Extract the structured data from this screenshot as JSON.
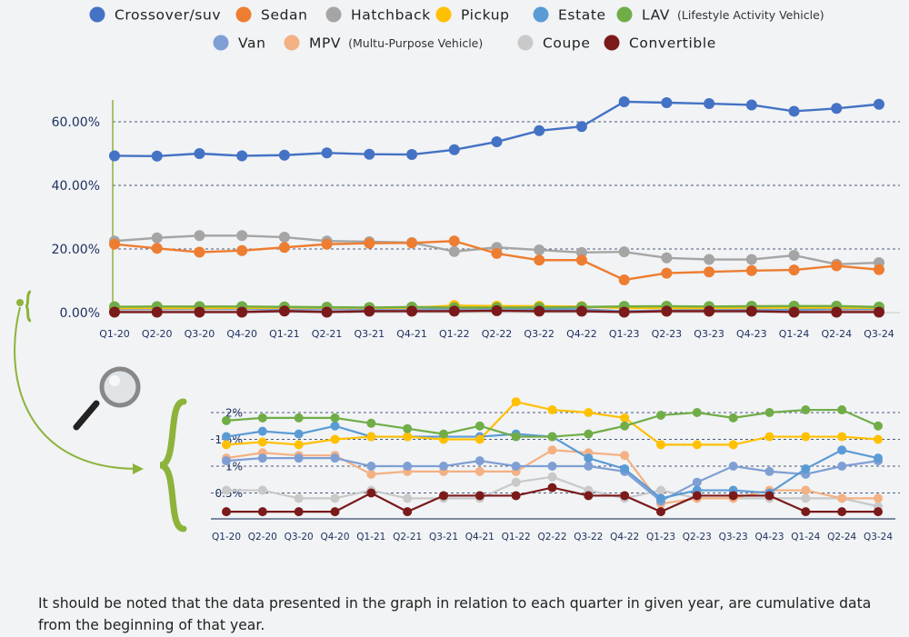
{
  "chart_data": [
    {
      "type": "line",
      "categories": [
        "Q1-20",
        "Q2-20",
        "Q3-20",
        "Q4-20",
        "Q1-21",
        "Q2-21",
        "Q3-21",
        "Q4-21",
        "Q1-22",
        "Q2-22",
        "Q3-22",
        "Q4-22",
        "Q1-23",
        "Q2-23",
        "Q3-23",
        "Q4-23",
        "Q1-24",
        "Q2-24",
        "Q3-24"
      ],
      "y_ticks": [
        "0.00%",
        "20.00%",
        "40.00%",
        "60.00%"
      ],
      "ylim": [
        0,
        70
      ],
      "legend_position": "top",
      "series": [
        {
          "name": "Crossover/suv",
          "color": "#4472c4",
          "values": [
            49.3,
            49.2,
            50.0,
            49.3,
            49.5,
            50.2,
            49.8,
            49.7,
            51.2,
            53.7,
            57.2,
            58.5,
            66.3,
            66.0,
            65.7,
            65.3,
            63.3,
            64.2,
            65.5
          ]
        },
        {
          "name": "Sedan",
          "color": "#ed7d31",
          "values": [
            21.5,
            20.2,
            19.0,
            19.5,
            20.5,
            21.5,
            21.8,
            21.9,
            22.5,
            18.6,
            16.5,
            16.5,
            10.3,
            12.4,
            12.8,
            13.2,
            13.4,
            14.7,
            13.5
          ]
        },
        {
          "name": "Hatchback",
          "color": "#a5a5a5",
          "values": [
            22.5,
            23.5,
            24.2,
            24.2,
            23.7,
            22.5,
            22.3,
            22.0,
            19.2,
            20.5,
            19.7,
            18.9,
            19.1,
            17.2,
            16.7,
            16.7,
            18.0,
            15.2,
            15.7
          ]
        },
        {
          "name": "Pickup",
          "color": "#ffc000",
          "values": [
            1.4,
            1.45,
            1.4,
            1.5,
            1.55,
            1.55,
            1.5,
            1.5,
            2.2,
            2.05,
            2.0,
            1.9,
            1.4,
            1.4,
            1.4,
            1.55,
            1.55,
            1.55,
            1.5
          ]
        },
        {
          "name": "Estate",
          "color": "#5b9bd5",
          "values": [
            1.55,
            1.65,
            1.6,
            1.75,
            1.55,
            1.55,
            1.55,
            1.55,
            1.6,
            1.55,
            1.15,
            0.95,
            0.4,
            0.55,
            0.55,
            0.5,
            0.95,
            1.3,
            1.15
          ]
        },
        {
          "name": "LAV",
          "color": "#70ad47",
          "values": [
            1.85,
            1.9,
            1.9,
            1.9,
            1.8,
            1.7,
            1.6,
            1.75,
            1.55,
            1.55,
            1.6,
            1.75,
            1.95,
            2.0,
            1.9,
            2.0,
            2.05,
            2.05,
            1.75
          ]
        },
        {
          "name": "Van",
          "color": "#7f9fd4",
          "values": [
            1.1,
            1.15,
            1.15,
            1.15,
            1.0,
            1.0,
            1.0,
            1.1,
            1.0,
            1.0,
            1.0,
            0.9,
            0.35,
            0.7,
            1.0,
            0.9,
            0.85,
            1.0,
            1.1
          ]
        },
        {
          "name": "MPV",
          "color": "#f4b183",
          "values": [
            1.15,
            1.25,
            1.2,
            1.2,
            0.85,
            0.9,
            0.9,
            0.9,
            0.9,
            1.3,
            1.25,
            1.2,
            0.3,
            0.4,
            0.4,
            0.55,
            0.55,
            0.4,
            0.4
          ]
        },
        {
          "name": "Coupe",
          "color": "#c9c9c9",
          "values": [
            0.55,
            0.55,
            0.4,
            0.4,
            0.55,
            0.4,
            0.4,
            0.4,
            0.7,
            0.8,
            0.55,
            0.4,
            0.55,
            0.4,
            0.4,
            0.4,
            0.4,
            0.4,
            0.25
          ]
        },
        {
          "name": "Convertible",
          "color": "#7b1a1a",
          "values": [
            0.15,
            0.15,
            0.15,
            0.15,
            0.5,
            0.15,
            0.45,
            0.45,
            0.45,
            0.6,
            0.45,
            0.45,
            0.15,
            0.45,
            0.45,
            0.45,
            0.15,
            0.15,
            0.15
          ]
        }
      ]
    },
    {
      "type": "line",
      "categories": [
        "Q1-20",
        "Q2-20",
        "Q3-20",
        "Q4-20",
        "Q1-21",
        "Q2-21",
        "Q3-21",
        "Q4-21",
        "Q1-22",
        "Q2-22",
        "Q3-22",
        "Q4-22",
        "Q1-23",
        "Q2-23",
        "Q3-23",
        "Q4-23",
        "Q1-24",
        "Q2-24",
        "Q3-24"
      ],
      "y_ticks": [
        "0.5%",
        "1%",
        "1.5%",
        "2%"
      ],
      "ylim": [
        0,
        2.2
      ],
      "shows_series": [
        "Pickup",
        "Estate",
        "LAV",
        "Van",
        "MPV",
        "Coupe",
        "Convertible"
      ]
    }
  ],
  "legend": {
    "row1": [
      {
        "label": "Crossover/suv",
        "sub": ""
      },
      {
        "label": "Sedan",
        "sub": ""
      },
      {
        "label": "Hatchback",
        "sub": ""
      },
      {
        "label": "Pickup",
        "sub": ""
      },
      {
        "label": "Estate",
        "sub": ""
      },
      {
        "label": "LAV",
        "sub": "(Lifestyle Activity Vehicle)"
      }
    ],
    "row2": [
      {
        "label": "Van",
        "sub": ""
      },
      {
        "label": "MPV",
        "sub": "(Multu-Purpose Vehicle)"
      },
      {
        "label": "Coupe",
        "sub": ""
      },
      {
        "label": "Convertible",
        "sub": ""
      }
    ]
  },
  "icons": {
    "zoom": "magnifier-icon",
    "connector": "curved-arrow-icon"
  },
  "footnote": "It should be noted that the data presented in the graph in relation to each quarter in given year, are cumulative data from the beginning of that year."
}
